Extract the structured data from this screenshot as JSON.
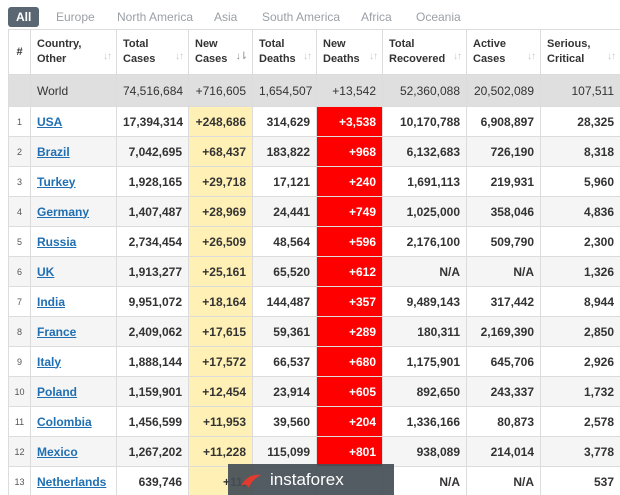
{
  "tabs": [
    "All",
    "Europe",
    "North America",
    "Asia",
    "South America",
    "Africa",
    "Oceania"
  ],
  "columns": {
    "hash": "#",
    "country_1": "Country,",
    "country_2": "Other",
    "total_cases_1": "Total",
    "total_cases_2": "Cases",
    "new_cases_1": "New",
    "new_cases_2": "Cases",
    "total_deaths_1": "Total",
    "total_deaths_2": "Deaths",
    "new_deaths_1": "New",
    "new_deaths_2": "Deaths",
    "total_recovered_1": "Total",
    "total_recovered_2": "Recovered",
    "active_cases_1": "Active",
    "active_cases_2": "Cases",
    "serious_1": "Serious,",
    "serious_2": "Critical"
  },
  "world": {
    "country": "World",
    "total_cases": "74,516,684",
    "new_cases": "+716,605",
    "total_deaths": "1,654,507",
    "new_deaths": "+13,542",
    "total_recovered": "52,360,088",
    "active_cases": "20,502,089",
    "serious": "107,511"
  },
  "rows": [
    {
      "idx": "1",
      "country": "USA",
      "total_cases": "17,394,314",
      "new_cases": "+248,686",
      "total_deaths": "314,629",
      "new_deaths": "+3,538",
      "total_recovered": "10,170,788",
      "active_cases": "6,908,897",
      "serious": "28,325"
    },
    {
      "idx": "2",
      "country": "Brazil",
      "total_cases": "7,042,695",
      "new_cases": "+68,437",
      "total_deaths": "183,822",
      "new_deaths": "+968",
      "total_recovered": "6,132,683",
      "active_cases": "726,190",
      "serious": "8,318"
    },
    {
      "idx": "3",
      "country": "Turkey",
      "total_cases": "1,928,165",
      "new_cases": "+29,718",
      "total_deaths": "17,121",
      "new_deaths": "+240",
      "total_recovered": "1,691,113",
      "active_cases": "219,931",
      "serious": "5,960"
    },
    {
      "idx": "4",
      "country": "Germany",
      "total_cases": "1,407,487",
      "new_cases": "+28,969",
      "total_deaths": "24,441",
      "new_deaths": "+749",
      "total_recovered": "1,025,000",
      "active_cases": "358,046",
      "serious": "4,836"
    },
    {
      "idx": "5",
      "country": "Russia",
      "total_cases": "2,734,454",
      "new_cases": "+26,509",
      "total_deaths": "48,564",
      "new_deaths": "+596",
      "total_recovered": "2,176,100",
      "active_cases": "509,790",
      "serious": "2,300"
    },
    {
      "idx": "6",
      "country": "UK",
      "total_cases": "1,913,277",
      "new_cases": "+25,161",
      "total_deaths": "65,520",
      "new_deaths": "+612",
      "total_recovered": "N/A",
      "active_cases": "N/A",
      "serious": "1,326"
    },
    {
      "idx": "7",
      "country": "India",
      "total_cases": "9,951,072",
      "new_cases": "+18,164",
      "total_deaths": "144,487",
      "new_deaths": "+357",
      "total_recovered": "9,489,143",
      "active_cases": "317,442",
      "serious": "8,944"
    },
    {
      "idx": "8",
      "country": "France",
      "total_cases": "2,409,062",
      "new_cases": "+17,615",
      "total_deaths": "59,361",
      "new_deaths": "+289",
      "total_recovered": "180,311",
      "active_cases": "2,169,390",
      "serious": "2,850"
    },
    {
      "idx": "9",
      "country": "Italy",
      "total_cases": "1,888,144",
      "new_cases": "+17,572",
      "total_deaths": "66,537",
      "new_deaths": "+680",
      "total_recovered": "1,175,901",
      "active_cases": "645,706",
      "serious": "2,926"
    },
    {
      "idx": "10",
      "country": "Poland",
      "total_cases": "1,159,901",
      "new_cases": "+12,454",
      "total_deaths": "23,914",
      "new_deaths": "+605",
      "total_recovered": "892,650",
      "active_cases": "243,337",
      "serious": "1,732"
    },
    {
      "idx": "11",
      "country": "Colombia",
      "total_cases": "1,456,599",
      "new_cases": "+11,953",
      "total_deaths": "39,560",
      "new_deaths": "+204",
      "total_recovered": "1,336,166",
      "active_cases": "80,873",
      "serious": "2,578"
    },
    {
      "idx": "12",
      "country": "Mexico",
      "total_cases": "1,267,202",
      "new_cases": "+11,228",
      "total_deaths": "115,099",
      "new_deaths": "+801",
      "total_recovered": "938,089",
      "active_cases": "214,014",
      "serious": "3,778"
    },
    {
      "idx": "13",
      "country": "Netherlands",
      "total_cases": "639,746",
      "new_cases": "+11,",
      "total_deaths": "",
      "new_deaths": "",
      "total_recovered": "N/A",
      "active_cases": "N/A",
      "serious": "537"
    }
  ],
  "watermark": {
    "text": "instaforex",
    "icon": "instaforex-logo-icon"
  },
  "colors": {
    "new_cases_bg": "#fff1b5",
    "new_deaths_bg": "#ff0000",
    "active_tab_bg": "#5a6672",
    "link": "#1f6fb2"
  }
}
